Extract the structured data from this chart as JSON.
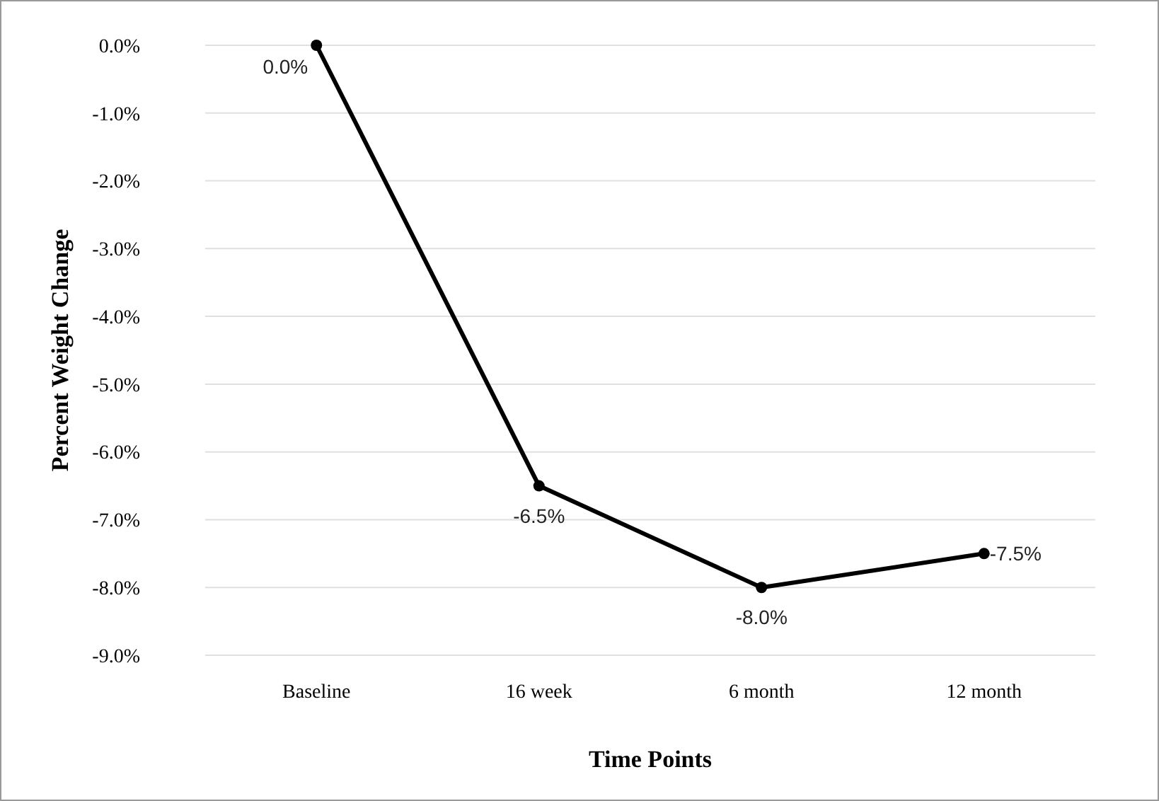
{
  "chart_data": {
    "type": "line",
    "xlabel": "Time Points",
    "ylabel": "Percent Weight Change",
    "categories": [
      "Baseline",
      "16 week",
      "6 month",
      "12 month"
    ],
    "series": [
      {
        "color": "#000000",
        "values": [
          0.0,
          -6.5,
          -8.0,
          -7.5
        ],
        "value_labels": [
          "0.0%",
          "-6.5%",
          "-8.0%",
          "-7.5%"
        ]
      }
    ],
    "ylim": [
      -9,
      0
    ],
    "yticks": [
      {
        "value": 0,
        "label": "0.0%"
      },
      {
        "value": -1,
        "label": "-1.0%"
      },
      {
        "value": -2,
        "label": "-2.0%"
      },
      {
        "value": -3,
        "label": "-3.0%"
      },
      {
        "value": -4,
        "label": "-4.0%"
      },
      {
        "value": -5,
        "label": "-5.0%"
      },
      {
        "value": -6,
        "label": "-6.0%"
      },
      {
        "value": -7,
        "label": "-7.0%"
      },
      {
        "value": -8,
        "label": "-8.0%"
      },
      {
        "value": -9,
        "label": "-9.0%"
      }
    ],
    "grid": "y",
    "marker": "circle",
    "line_style": "solid"
  }
}
